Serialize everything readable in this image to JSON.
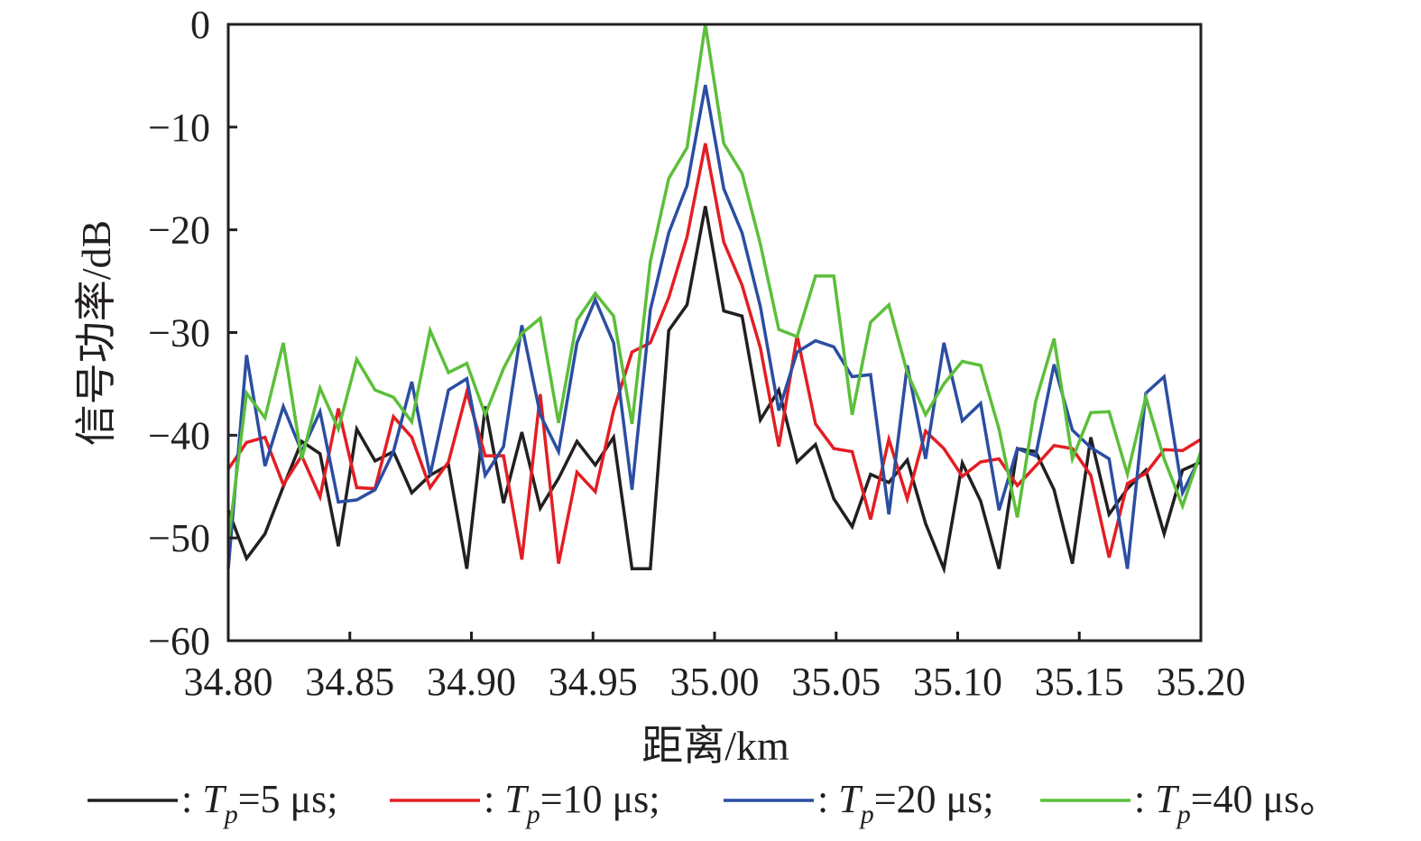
{
  "chart_data": {
    "type": "line",
    "title": "",
    "xlabel": "距离/km",
    "ylabel": "信号功率/dB",
    "xlim": [
      34.8,
      35.2
    ],
    "ylim": [
      -60,
      0
    ],
    "x_start": 34.8,
    "x_end": 35.2,
    "x_ticks": [
      34.8,
      34.85,
      34.9,
      34.95,
      35.0,
      35.05,
      35.1,
      35.15,
      35.2
    ],
    "x_tick_labels": [
      "34.80",
      "34.85",
      "34.90",
      "34.95",
      "35.00",
      "35.05",
      "35.10",
      "35.15",
      "35.20"
    ],
    "y_ticks": [
      0,
      -10,
      -20,
      -30,
      -40,
      -50,
      -60
    ],
    "y_tick_labels": [
      "0",
      "−10",
      "−20",
      "−30",
      "−40",
      "−50",
      "−60"
    ],
    "grid": false,
    "legend_placement": "bottom",
    "series": [
      {
        "name": ": Tp=5 μs;",
        "label_prefix": ": ",
        "label_T": "T",
        "label_sub": "p",
        "label_rest": "=5 μs;",
        "color": "#231f20",
        "values": [
          -47.3,
          -52.0,
          -49.6,
          -45.0,
          -40.6,
          -41.8,
          -50.8,
          -39.4,
          -42.5,
          -41.6,
          -45.6,
          -43.9,
          -42.9,
          -53.0,
          -37.2,
          -46.6,
          -39.7,
          -47.1,
          -44.2,
          -40.6,
          -42.9,
          -40.2,
          -53.0,
          -53.0,
          -29.8,
          -27.3,
          -17.7,
          -27.9,
          -28.4,
          -38.5,
          -35.6,
          -42.6,
          -40.9,
          -46.2,
          -48.9,
          -43.8,
          -44.6,
          -42.4,
          -48.6,
          -53.0,
          -42.7,
          -46.4,
          -53.0,
          -41.3,
          -41.6,
          -45.3,
          -52.5,
          -40.2,
          -47.7,
          -45.2,
          -43.4,
          -49.6,
          -43.4,
          -42.6
        ]
      },
      {
        "name": ": Tp=10 μs;",
        "label_prefix": ": ",
        "label_T": "T",
        "label_sub": "p",
        "label_rest": "=10 μs;",
        "color": "#e31e24",
        "values": [
          -43.3,
          -40.7,
          -40.2,
          -44.8,
          -42.0,
          -46.0,
          -37.4,
          -45.1,
          -45.2,
          -38.2,
          -40.2,
          -45.1,
          -42.6,
          -35.8,
          -42.0,
          -42.0,
          -52.1,
          -36.0,
          -52.5,
          -43.6,
          -45.5,
          -37.6,
          -31.9,
          -31.0,
          -26.6,
          -20.7,
          -11.6,
          -21.2,
          -25.4,
          -31.5,
          -41.1,
          -30.3,
          -38.9,
          -41.3,
          -41.6,
          -48.2,
          -40.4,
          -46.2,
          -39.6,
          -41.3,
          -44.0,
          -42.6,
          -42.3,
          -44.9,
          -43.0,
          -41.0,
          -41.3,
          -43.9,
          -51.9,
          -44.7,
          -43.7,
          -41.4,
          -41.5,
          -40.4
        ]
      },
      {
        "name": ": Tp=20 μs;",
        "label_prefix": ": ",
        "label_T": "T",
        "label_sub": "p",
        "label_rest": "=20 μs;",
        "color": "#2b4ea2",
        "values": [
          -53.0,
          -32.2,
          -43.0,
          -37.2,
          -41.6,
          -37.7,
          -46.5,
          -46.3,
          -45.3,
          -41.6,
          -34.8,
          -43.9,
          -35.6,
          -34.5,
          -43.9,
          -41.1,
          -29.3,
          -38.0,
          -41.6,
          -31.0,
          -26.8,
          -31.0,
          -45.3,
          -27.8,
          -20.3,
          -15.7,
          -5.9,
          -16.0,
          -20.3,
          -27.5,
          -37.6,
          -31.9,
          -30.8,
          -31.4,
          -34.3,
          -34.1,
          -47.7,
          -33.2,
          -42.3,
          -31.0,
          -38.6,
          -36.9,
          -47.3,
          -41.3,
          -42.0,
          -33.1,
          -39.5,
          -41.2,
          -42.3,
          -53.0,
          -35.9,
          -34.3,
          -45.6,
          -42.0
        ]
      },
      {
        "name": ": Tp=40 μs。",
        "label_prefix": ": ",
        "label_T": "T",
        "label_sub": "p",
        "label_rest": "=40 μs。",
        "color": "#5cbf3a",
        "values": [
          -50.4,
          -35.9,
          -38.3,
          -31.0,
          -42.3,
          -35.4,
          -39.4,
          -32.6,
          -35.6,
          -36.3,
          -38.7,
          -29.8,
          -33.9,
          -33.0,
          -38.0,
          -33.5,
          -30.1,
          -28.6,
          -38.8,
          -28.8,
          -26.2,
          -28.4,
          -38.9,
          -23.1,
          -15.0,
          -12.0,
          0.0,
          -11.6,
          -14.5,
          -21.4,
          -29.7,
          -30.4,
          -24.5,
          -24.5,
          -38.0,
          -29.0,
          -27.3,
          -33.9,
          -38.0,
          -35.0,
          -32.8,
          -33.2,
          -39.4,
          -48.0,
          -36.7,
          -30.6,
          -42.3,
          -37.8,
          -37.7,
          -43.8,
          -36.3,
          -42.3,
          -46.9,
          -41.6
        ]
      }
    ]
  }
}
